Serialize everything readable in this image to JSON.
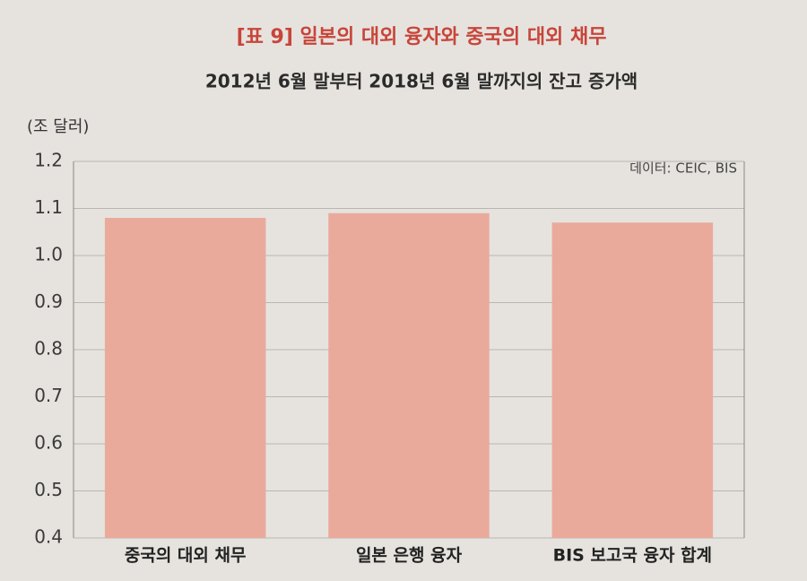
{
  "chart_data": {
    "type": "bar",
    "title": "[표 9] 일본의 대외 융자와 중국의 대외 채무",
    "subtitle": "2012년 6월 말부터 2018년 6월 말까지의 잔고 증가액",
    "y_label": "(조 달러)",
    "source": "데이터: CEIC, BIS",
    "categories": [
      "중국의 대외 채무",
      "일본 은행 융자",
      "BIS 보고국 융자 합계"
    ],
    "values": [
      1.08,
      1.09,
      1.07
    ],
    "color": "#e9aa9c",
    "ylim": [
      0.4,
      1.2
    ],
    "yticks": [
      0.4,
      0.5,
      0.6,
      0.7,
      0.8,
      0.9,
      {
        "value": 1,
        "label": "1.0"
      },
      1.1,
      1.2
    ],
    "grid": true
  }
}
